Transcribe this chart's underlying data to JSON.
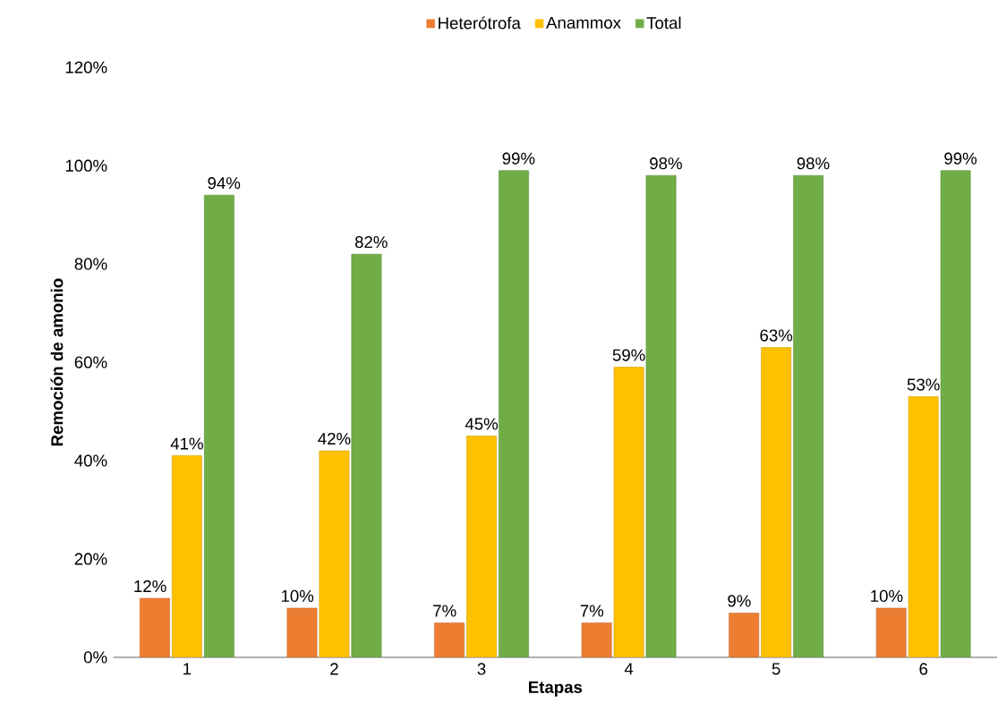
{
  "chart_data": {
    "type": "bar",
    "xlabel": "Etapas",
    "ylabel": "Remoción de amonio",
    "categories": [
      "1",
      "2",
      "3",
      "4",
      "5",
      "6"
    ],
    "series": [
      {
        "name": "Heterótrofa",
        "color": "#ed7d31",
        "values": [
          12,
          10,
          7,
          7,
          9,
          10
        ],
        "value_labels": [
          "12%",
          "10%",
          "7%",
          "7%",
          "9%",
          "10%"
        ]
      },
      {
        "name": "Anammox",
        "color": "#ffc000",
        "values": [
          41,
          42,
          45,
          59,
          63,
          53
        ],
        "value_labels": [
          "41%",
          "42%",
          "45%",
          "59%",
          "63%",
          "53%"
        ]
      },
      {
        "name": "Total",
        "color": "#70ad47",
        "values": [
          94,
          82,
          99,
          98,
          98,
          99
        ],
        "value_labels": [
          "94%",
          "82%",
          "99%",
          "98%",
          "98%",
          "99%"
        ]
      }
    ],
    "ylim": [
      0,
      120
    ],
    "yticks": [
      {
        "value": 0,
        "label": "0%"
      },
      {
        "value": 20,
        "label": "20%"
      },
      {
        "value": 40,
        "label": "40%"
      },
      {
        "value": 60,
        "label": "60%"
      },
      {
        "value": 80,
        "label": "80%"
      },
      {
        "value": 100,
        "label": "100%"
      },
      {
        "value": 120,
        "label": "120%"
      }
    ],
    "legend": "top"
  }
}
